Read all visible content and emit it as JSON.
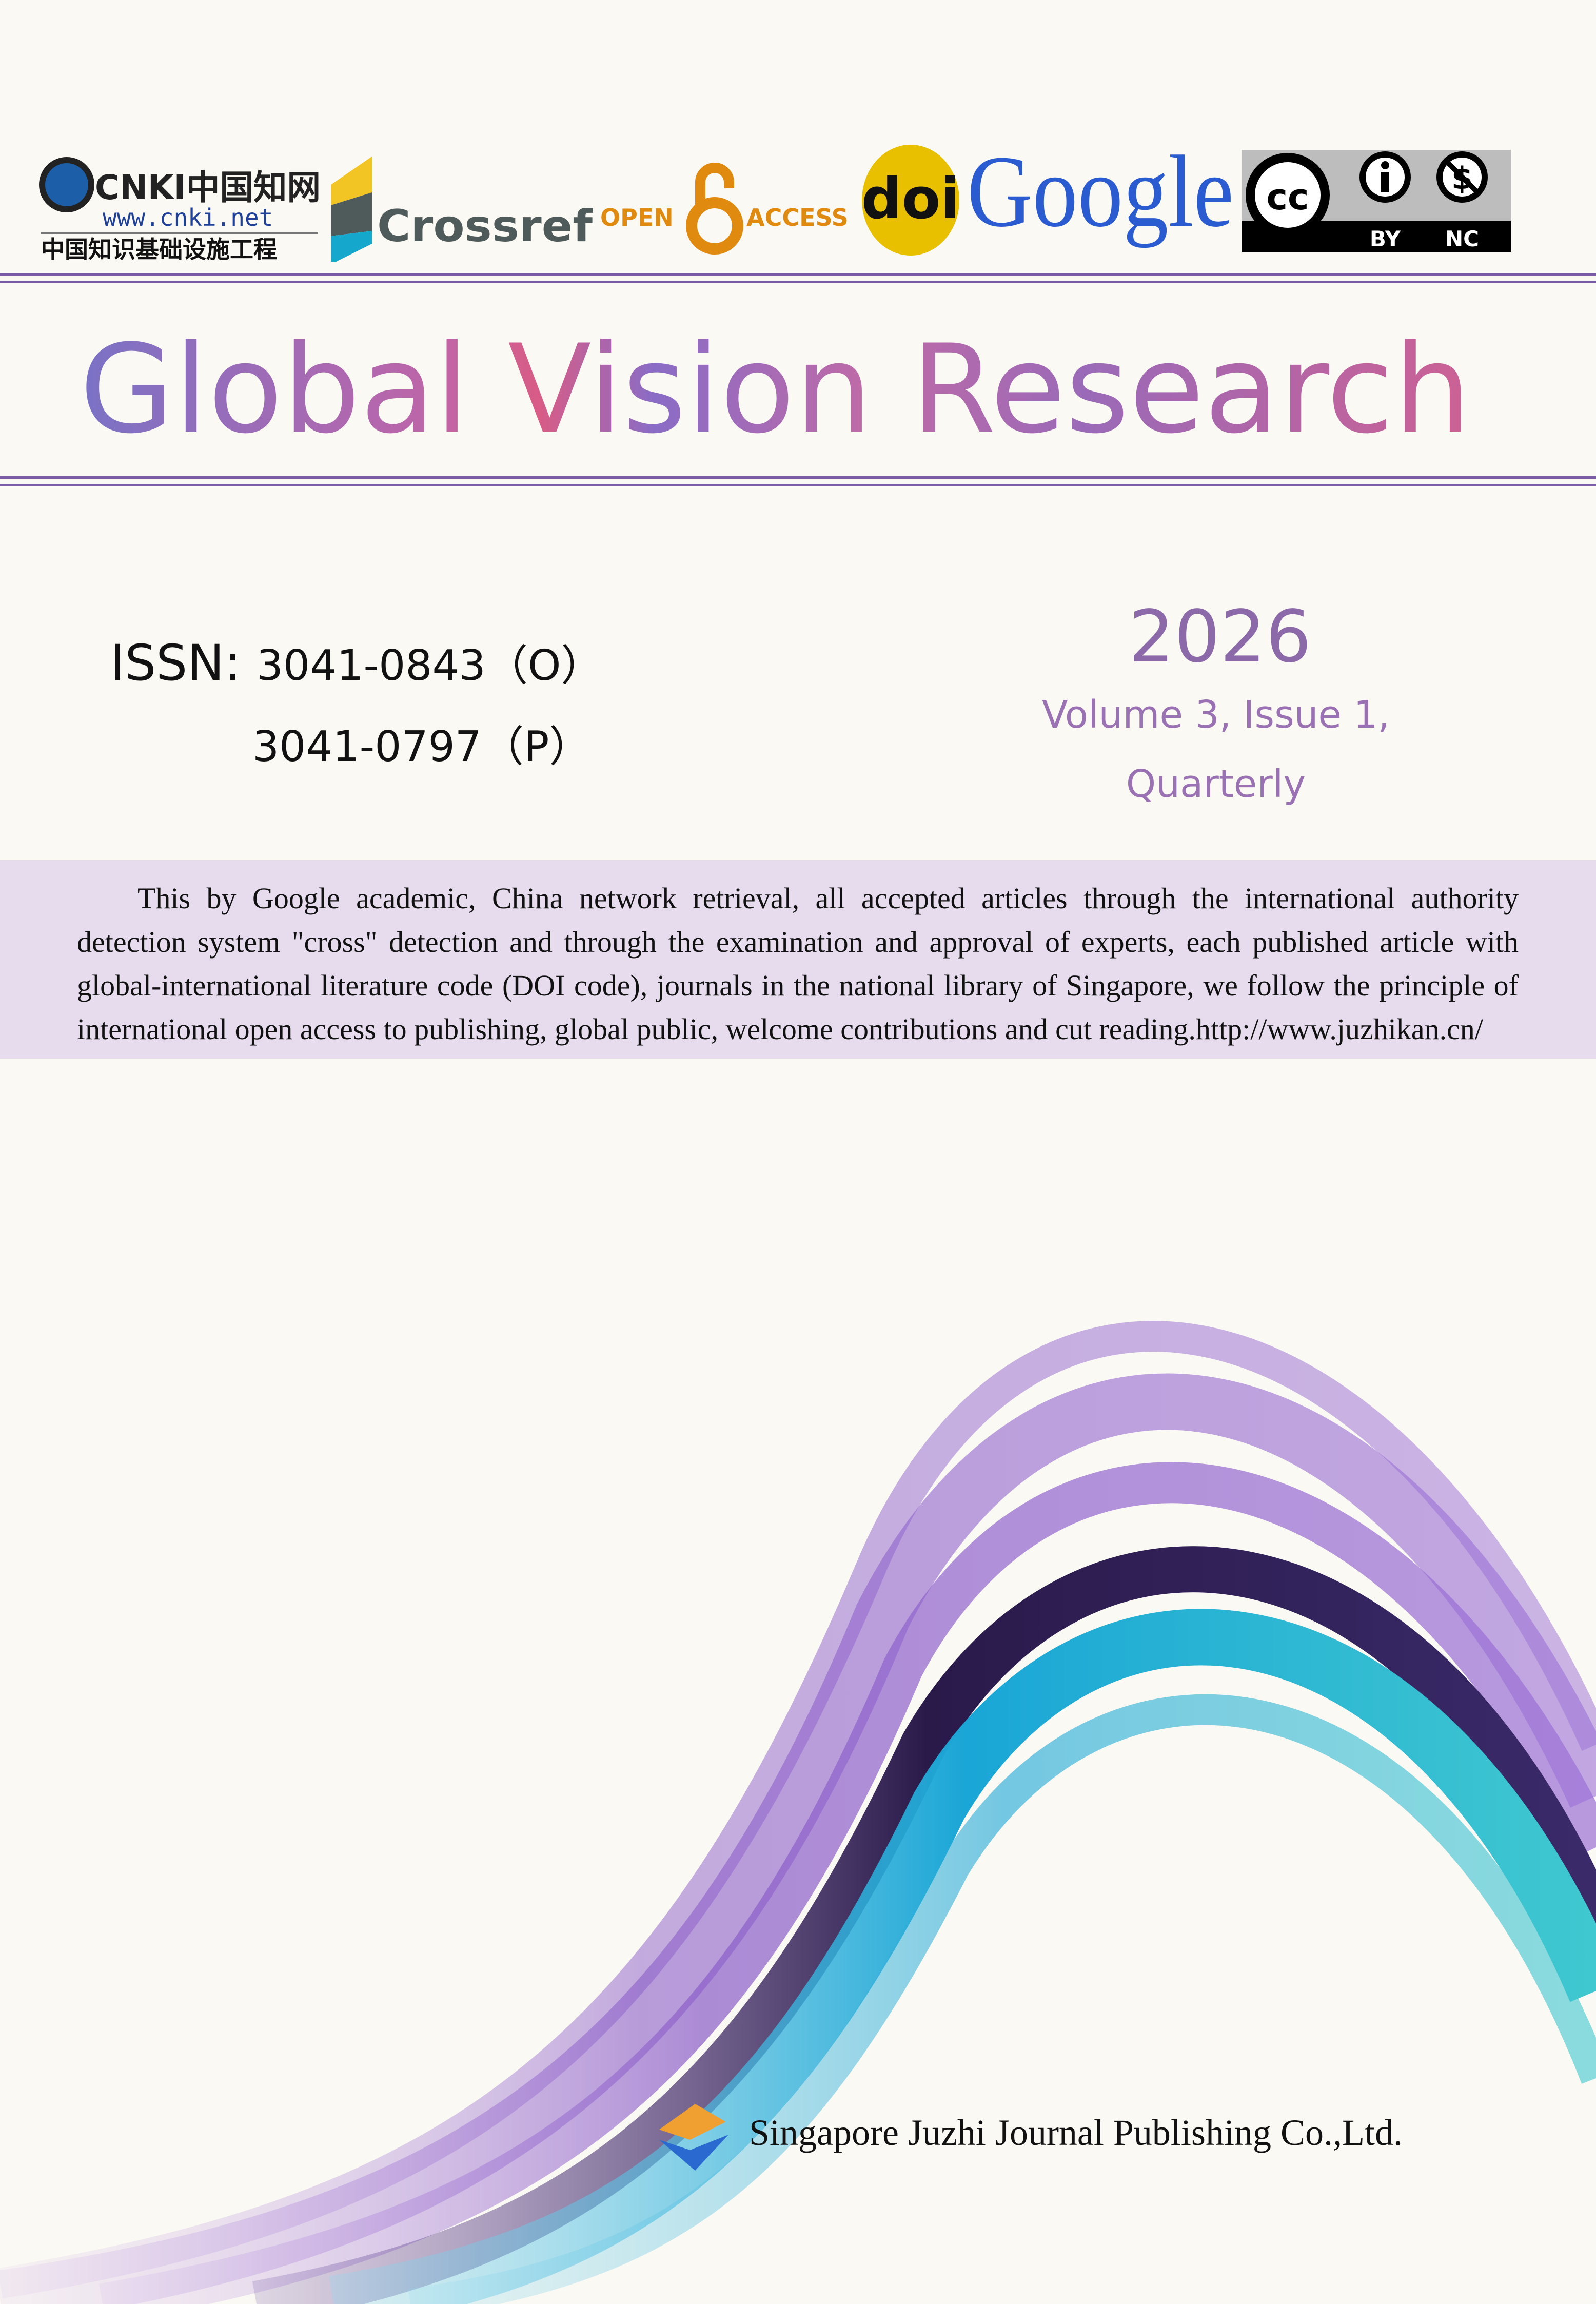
{
  "logos": {
    "cnki": {
      "name": "cnki-logo",
      "text": "CNKI中国知网",
      "url": "www.cnki.net",
      "subtitle": "中国知识基础设施工程"
    },
    "crossref": {
      "text": "Crossref"
    },
    "open_access": {
      "left": "OPEN",
      "right": "ACCESS"
    },
    "doi": {
      "text": "doi"
    },
    "google": {
      "text": "Google"
    },
    "cc_license": {
      "cc": "cc",
      "by": "BY",
      "nc": "NC"
    }
  },
  "journal": {
    "title": "Global Vision Research",
    "issn_label": "ISSN:",
    "issn_online": "3041-0843（O）",
    "issn_print": "3041-0797（P）",
    "year": "2026",
    "volume_issue": "Volume 3, Issue 1,",
    "frequency": "Quarterly"
  },
  "description": "This by Google academic, China network retrieval, all accepted articles through the international authority detection system \"cross\" detection and through the examination and approval of experts, each published article with global-international literature code (DOI code), journals in the national library of Singapore, we follow the principle of international open access to publishing, global public, welcome contributions and cut reading.http://www.juzhikan.cn/",
  "publisher": "Singapore Juzhi Journal Publishing Co.,Ltd.",
  "colors": {
    "accent": "#7b5ca8",
    "band": "#e6dcee",
    "year": "#8c6aa9",
    "background": "#fbf9f3"
  }
}
